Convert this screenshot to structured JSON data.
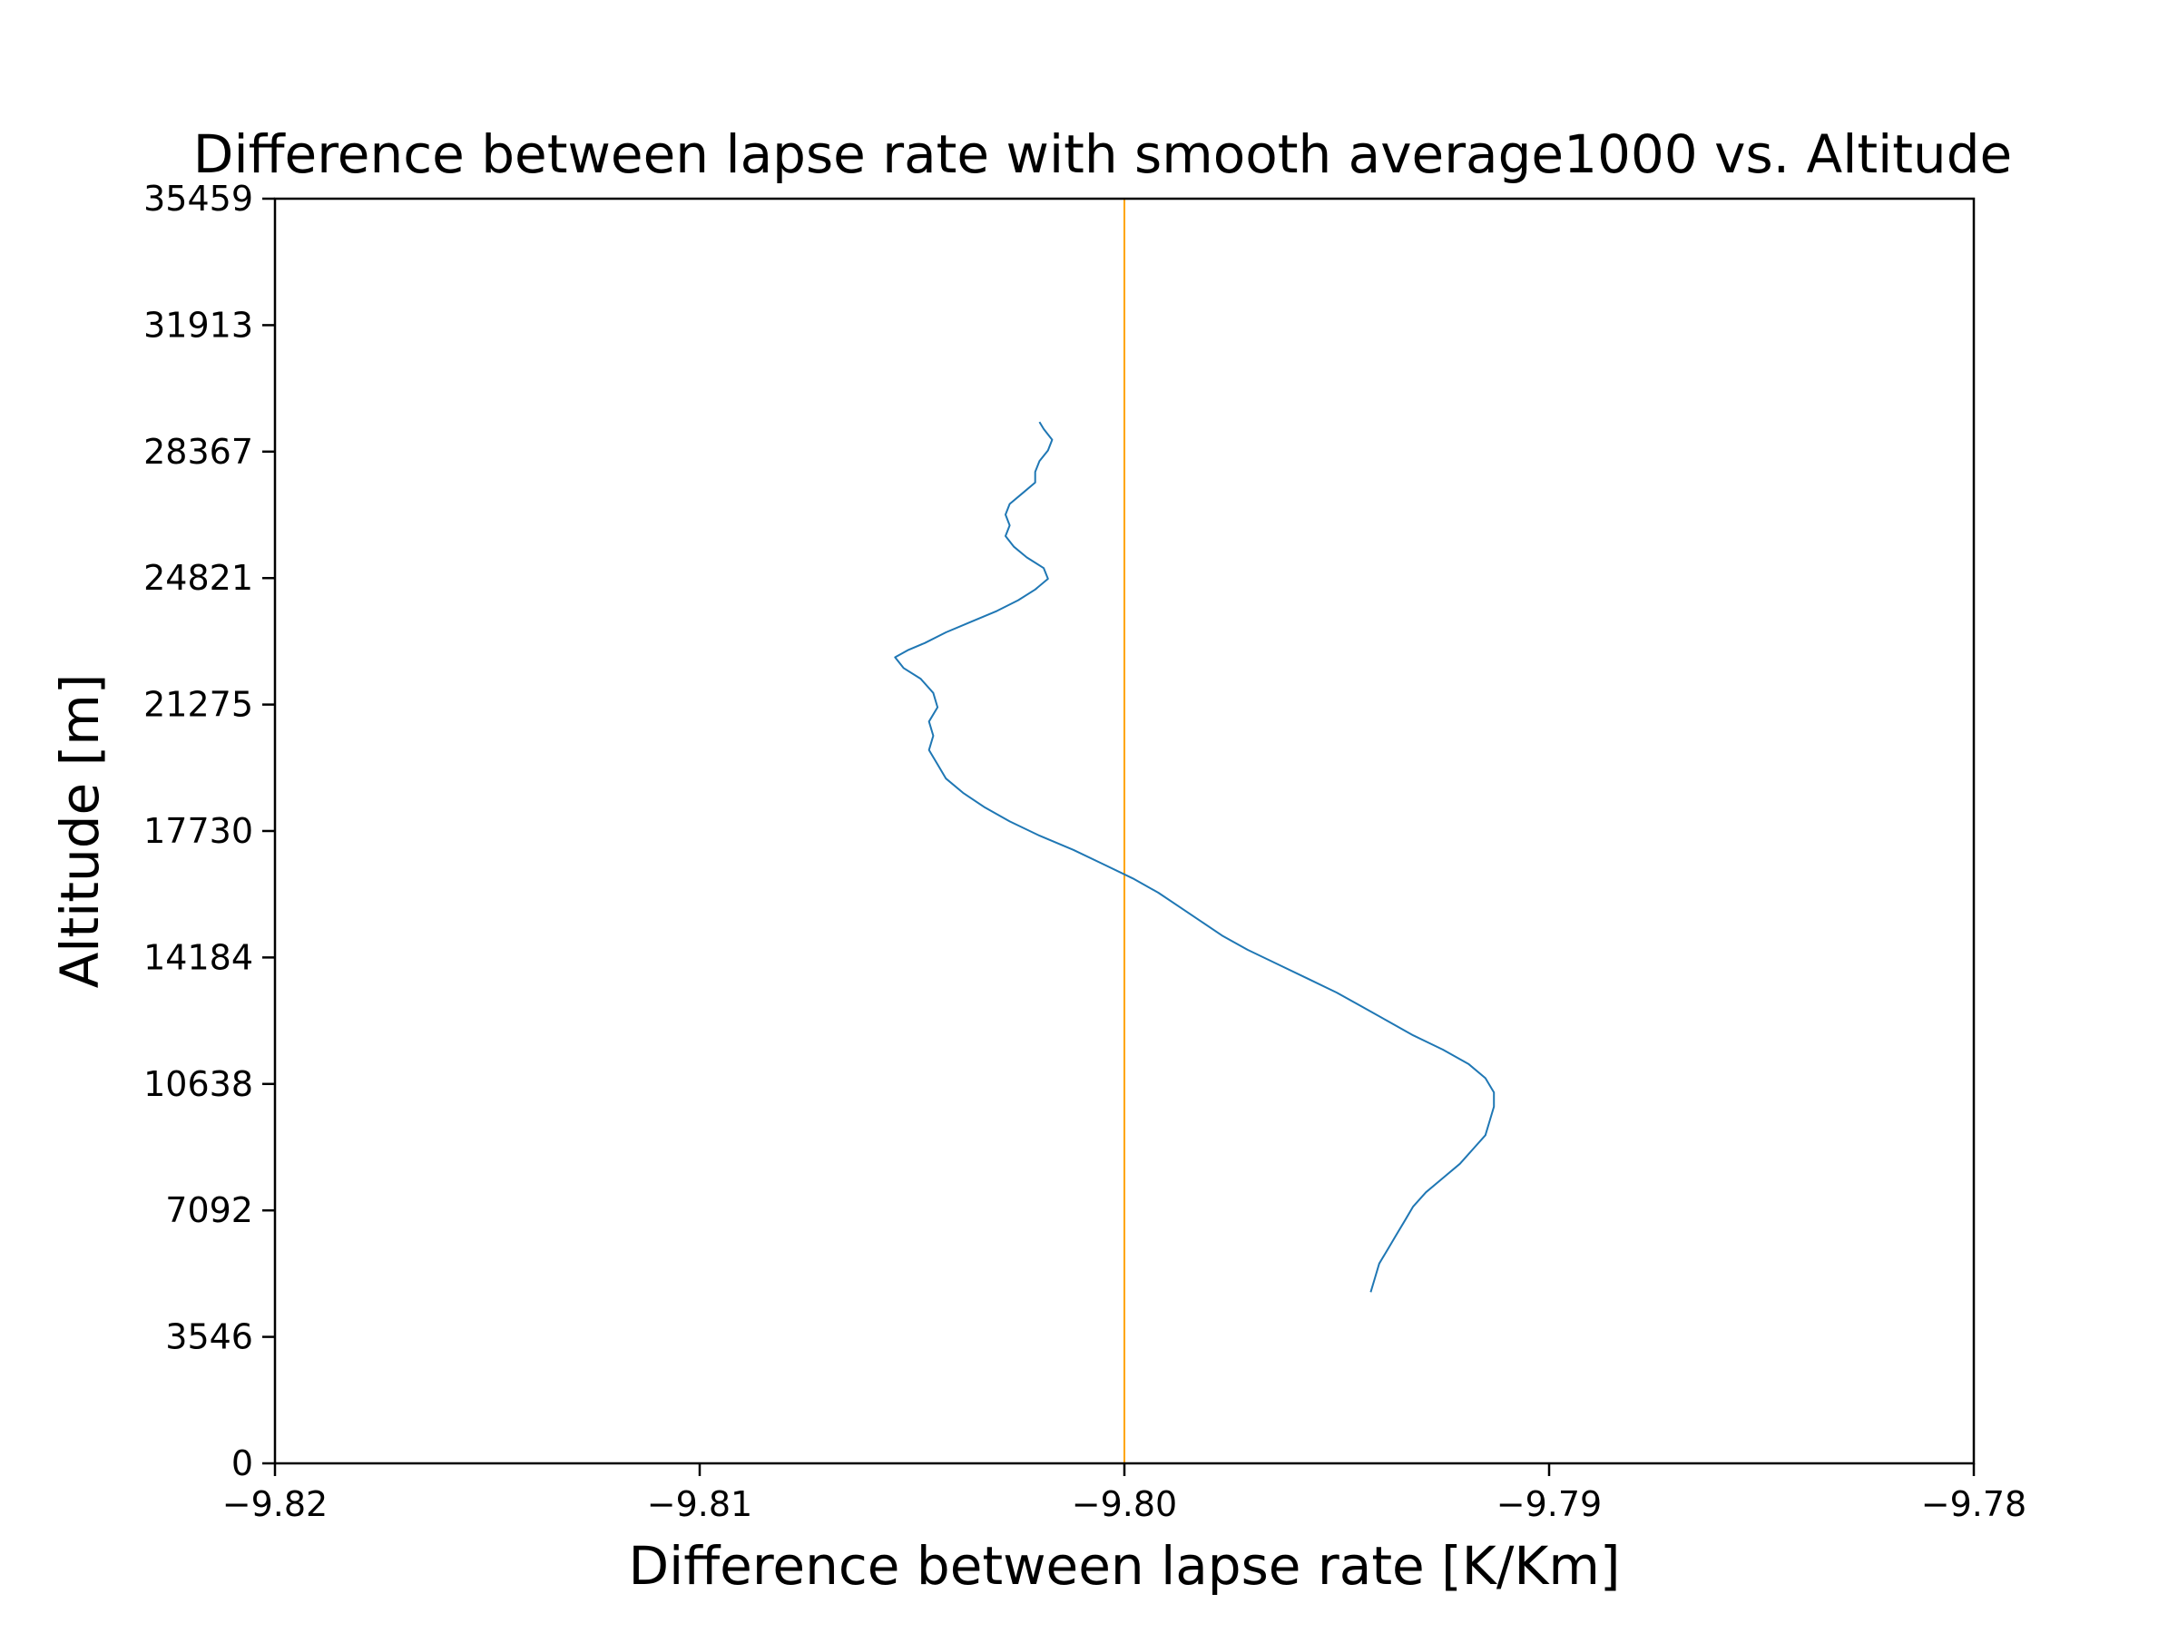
{
  "chart_data": {
    "type": "line",
    "title": "Difference between lapse rate with smooth average1000 vs. Altitude",
    "xlabel": "Difference between lapse rate [K/Km]",
    "ylabel": "Altitude [m]",
    "xlim": [
      -9.82,
      -9.78
    ],
    "ylim": [
      0,
      35459
    ],
    "x_ticks": [
      -9.82,
      -9.81,
      -9.8,
      -9.79,
      -9.78
    ],
    "x_tick_labels": [
      "−9.82",
      "−9.81",
      "−9.80",
      "−9.79",
      "−9.78"
    ],
    "y_ticks": [
      0,
      3546,
      7092,
      10638,
      14184,
      17730,
      21275,
      24821,
      28367,
      31913,
      35459
    ],
    "y_tick_labels": [
      "0",
      "3546",
      "7092",
      "10638",
      "14184",
      "17730",
      "21275",
      "24821",
      "28367",
      "31913",
      "35459"
    ],
    "grid": false,
    "series": [
      {
        "color": "#1f77b4",
        "points": [
          [
            -9.7942,
            4800
          ],
          [
            -9.7941,
            5200
          ],
          [
            -9.794,
            5600
          ],
          [
            -9.7938,
            6000
          ],
          [
            -9.7936,
            6400
          ],
          [
            -9.7934,
            6800
          ],
          [
            -9.7932,
            7200
          ],
          [
            -9.7929,
            7600
          ],
          [
            -9.7925,
            8000
          ],
          [
            -9.7921,
            8400
          ],
          [
            -9.7918,
            8800
          ],
          [
            -9.7915,
            9200
          ],
          [
            -9.7914,
            9600
          ],
          [
            -9.7913,
            10000
          ],
          [
            -9.7913,
            10400
          ],
          [
            -9.7915,
            10800
          ],
          [
            -9.7919,
            11200
          ],
          [
            -9.7925,
            11600
          ],
          [
            -9.7932,
            12000
          ],
          [
            -9.7938,
            12400
          ],
          [
            -9.7944,
            12800
          ],
          [
            -9.795,
            13200
          ],
          [
            -9.7957,
            13600
          ],
          [
            -9.7964,
            14000
          ],
          [
            -9.7971,
            14400
          ],
          [
            -9.7977,
            14800
          ],
          [
            -9.7982,
            15200
          ],
          [
            -9.7987,
            15600
          ],
          [
            -9.7992,
            16000
          ],
          [
            -9.7998,
            16400
          ],
          [
            -9.8005,
            16800
          ],
          [
            -9.8012,
            17200
          ],
          [
            -9.802,
            17600
          ],
          [
            -9.8027,
            18000
          ],
          [
            -9.8033,
            18400
          ],
          [
            -9.8038,
            18800
          ],
          [
            -9.8042,
            19200
          ],
          [
            -9.8044,
            19600
          ],
          [
            -9.8046,
            20000
          ],
          [
            -9.8045,
            20400
          ],
          [
            -9.8046,
            20800
          ],
          [
            -9.8044,
            21200
          ],
          [
            -9.8045,
            21600
          ],
          [
            -9.8048,
            22000
          ],
          [
            -9.8052,
            22300
          ],
          [
            -9.8054,
            22600
          ],
          [
            -9.8051,
            22800
          ],
          [
            -9.8047,
            23000
          ],
          [
            -9.8042,
            23300
          ],
          [
            -9.8036,
            23600
          ],
          [
            -9.803,
            23900
          ],
          [
            -9.8025,
            24200
          ],
          [
            -9.8021,
            24500
          ],
          [
            -9.8018,
            24800
          ],
          [
            -9.8019,
            25100
          ],
          [
            -9.8023,
            25400
          ],
          [
            -9.8026,
            25700
          ],
          [
            -9.8028,
            26000
          ],
          [
            -9.8027,
            26300
          ],
          [
            -9.8028,
            26600
          ],
          [
            -9.8027,
            26900
          ],
          [
            -9.8024,
            27200
          ],
          [
            -9.8021,
            27500
          ],
          [
            -9.8021,
            27800
          ],
          [
            -9.802,
            28100
          ],
          [
            -9.8018,
            28400
          ],
          [
            -9.8017,
            28700
          ],
          [
            -9.8019,
            29000
          ],
          [
            -9.802,
            29200
          ]
        ]
      }
    ],
    "reference_line": {
      "orientation": "vertical",
      "x": -9.8,
      "color": "#ffa500"
    }
  }
}
